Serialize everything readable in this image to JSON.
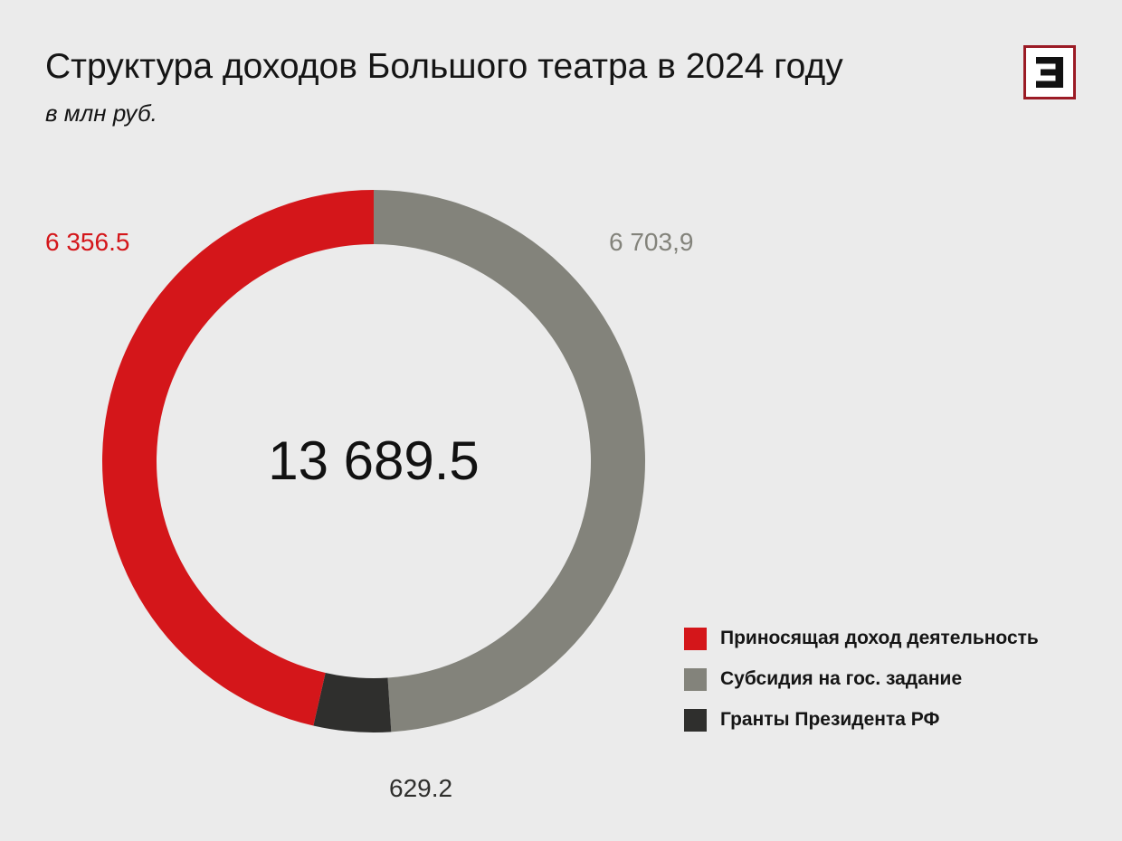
{
  "header": {
    "title": "Структура доходов Большого театра в 2024 году",
    "subtitle": "в млн руб."
  },
  "logo": {
    "icon": "letter-e-logo-icon",
    "accent_color": "#9b1b25"
  },
  "chart_data": {
    "type": "pie",
    "variant": "donut",
    "title": "Структура доходов Большого театра в 2024 году",
    "subtitle": "в млн руб.",
    "center_label": "13 689.5",
    "total": 13689.5,
    "legend_position": "bottom-right",
    "series": [
      {
        "name": "Приносящая доход деятельность",
        "value": 6356.5,
        "label": "6 356.5",
        "color": "#d4161a"
      },
      {
        "name": "Субсидия на гос. задание",
        "value": 6703.9,
        "label": "6 703,9",
        "color": "#83837b"
      },
      {
        "name": "Гранты Президента РФ",
        "value": 629.2,
        "label": "629.2",
        "color": "#2f2f2d"
      }
    ]
  }
}
